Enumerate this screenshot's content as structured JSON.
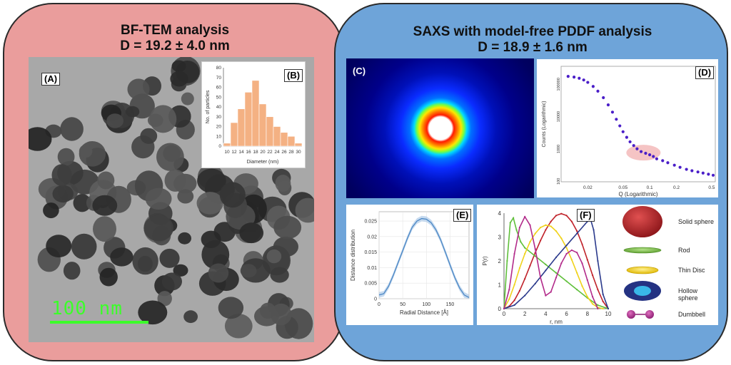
{
  "left_panel": {
    "title_line1": "BF-TEM analysis",
    "title_line2": "D = 19.2 ± 4.0 nm",
    "label_a": "(A)",
    "label_b": "(B)",
    "scale_bar_text": "100 nm",
    "colors": {
      "panel": "#ea9d9c",
      "scale": "#3cff2a",
      "bars": "#f4b183"
    }
  },
  "right_panel": {
    "title_line1": "SAXS with model-free PDDF analysis",
    "title_line2": "D = 18.9 ± 1.6 nm",
    "label_c": "(C)",
    "label_d": "(D)",
    "label_e": "(E)",
    "label_f": "(F)",
    "colors": {
      "panel": "#6ea4d9"
    }
  },
  "chart_data": [
    {
      "id": "histogram",
      "type": "bar",
      "title": "",
      "xlabel": "Diameter (nm)",
      "ylabel": "No. of particles",
      "categories": [
        "10",
        "12",
        "14",
        "16",
        "18",
        "20",
        "22",
        "24",
        "26",
        "28",
        "30"
      ],
      "bins": [
        10,
        12,
        14,
        16,
        18,
        20,
        22,
        24,
        26,
        28,
        30
      ],
      "values": [
        3,
        24,
        38,
        55,
        67,
        43,
        30,
        20,
        14,
        10,
        3
      ],
      "ylim": [
        0,
        80
      ],
      "yticks": [
        "0",
        "10",
        "20",
        "30",
        "40",
        "50",
        "60",
        "70",
        "80"
      ]
    },
    {
      "id": "saxs_curve",
      "type": "scatter",
      "xlabel": "Q (Logarithmic)",
      "ylabel": "Counts (Logarithmic)",
      "xticks": [
        "0.02",
        "0.05",
        "0.1",
        "0.2",
        "0.5"
      ],
      "yticks": [
        "100",
        "1000",
        "10000",
        "100000"
      ],
      "xlim": [
        0.01,
        0.55
      ],
      "ylim": [
        70,
        200000
      ],
      "x": [
        0.012,
        0.014,
        0.016,
        0.018,
        0.02,
        0.023,
        0.026,
        0.03,
        0.034,
        0.038,
        0.042,
        0.046,
        0.05,
        0.055,
        0.06,
        0.066,
        0.072,
        0.08,
        0.09,
        0.1,
        0.11,
        0.12,
        0.14,
        0.16,
        0.19,
        0.22,
        0.26,
        0.3,
        0.35,
        0.4,
        0.46,
        0.52
      ],
      "y": [
        100000,
        95000,
        88000,
        78000,
        66000,
        50000,
        36000,
        23000,
        14000,
        8500,
        5200,
        3300,
        2200,
        1500,
        1100,
        850,
        680,
        560,
        500,
        450,
        400,
        340,
        300,
        260,
        220,
        190,
        165,
        150,
        138,
        128,
        118,
        110
      ]
    },
    {
      "id": "distance_distribution",
      "type": "line",
      "xlabel": "Radial Distance [Å]",
      "ylabel": "Distance distribution",
      "xticks": [
        "0",
        "50",
        "100",
        "150"
      ],
      "yticks": [
        "0",
        "0.005",
        "0.01",
        "0.015",
        "0.02",
        "0.025"
      ],
      "xlim": [
        0,
        190
      ],
      "ylim": [
        0,
        0.028
      ],
      "x": [
        0,
        5,
        10,
        20,
        30,
        40,
        50,
        60,
        70,
        80,
        90,
        100,
        110,
        120,
        130,
        140,
        150,
        160,
        170,
        180,
        190
      ],
      "y": [
        0.0012,
        0.0014,
        0.0016,
        0.004,
        0.0075,
        0.0115,
        0.0155,
        0.0195,
        0.023,
        0.025,
        0.0258,
        0.0256,
        0.0245,
        0.0222,
        0.019,
        0.015,
        0.0108,
        0.0068,
        0.0035,
        0.0012,
        0.0004
      ]
    },
    {
      "id": "pr_models",
      "type": "line",
      "xlabel": "r, nm",
      "ylabel": "P(r)",
      "xticks": [
        "0",
        "2",
        "4",
        "6",
        "8",
        "10"
      ],
      "yticks": [
        "0",
        "1",
        "2",
        "3",
        "4"
      ],
      "xlim": [
        0,
        10
      ],
      "ylim": [
        0,
        4
      ],
      "series": [
        {
          "name": "Solid sphere",
          "color": "#c0222a",
          "x": [
            0,
            0.5,
            1,
            1.5,
            2,
            2.5,
            3,
            3.5,
            4,
            4.5,
            5,
            5.5,
            6,
            6.5,
            7,
            7.5,
            8,
            8.5,
            9,
            9.5,
            10
          ],
          "y": [
            0,
            0.1,
            0.35,
            0.75,
            1.25,
            1.8,
            2.35,
            2.85,
            3.3,
            3.65,
            3.9,
            3.98,
            3.9,
            3.65,
            3.25,
            2.7,
            2.05,
            1.4,
            0.8,
            0.3,
            0
          ]
        },
        {
          "name": "Rod",
          "color": "#5fbf3a",
          "x": [
            0,
            0.3,
            0.6,
            0.9,
            1.2,
            1.6,
            2,
            3,
            4,
            5,
            6,
            7,
            8,
            9,
            10
          ],
          "y": [
            0,
            2,
            3.6,
            3.8,
            3.3,
            2.8,
            2.55,
            2.2,
            1.85,
            1.5,
            1.15,
            0.8,
            0.45,
            0.15,
            0
          ]
        },
        {
          "name": "Thin Disc",
          "color": "#f0d21a",
          "x": [
            0,
            0.5,
            1,
            1.5,
            2,
            2.5,
            3,
            3.5,
            4,
            4.5,
            5,
            5.5,
            6,
            6.5,
            7,
            7.5,
            8,
            8.5,
            9,
            9.5
          ],
          "y": [
            0,
            0.4,
            1,
            1.7,
            2.3,
            2.8,
            3.15,
            3.4,
            3.5,
            3.45,
            3.25,
            2.95,
            2.55,
            2.05,
            1.5,
            0.95,
            0.5,
            0.2,
            0.05,
            0
          ]
        },
        {
          "name": "Hollow sphere",
          "color": "#2b3a8c",
          "x": [
            0,
            1,
            2,
            3,
            4,
            5,
            6,
            7,
            8,
            8.3,
            8.6,
            9,
            9.5,
            10
          ],
          "y": [
            0,
            0.15,
            0.55,
            1.05,
            1.6,
            2.15,
            2.65,
            3.15,
            3.65,
            3.75,
            3.3,
            2,
            0.6,
            0
          ]
        },
        {
          "name": "Dumbbell",
          "color": "#b22a8a",
          "x": [
            0,
            0.5,
            1,
            1.5,
            2,
            2.5,
            3,
            3.5,
            4,
            4.5,
            5,
            5.5,
            6,
            6.5,
            7,
            7.5,
            8,
            8.5,
            9
          ],
          "y": [
            0,
            0.8,
            2.3,
            3.4,
            3.85,
            3.5,
            2.5,
            1.3,
            0.55,
            0.7,
            1.3,
            1.9,
            2.3,
            2.45,
            2.35,
            1.9,
            1.2,
            0.5,
            0
          ]
        }
      ]
    }
  ],
  "legend": {
    "solid_sphere": "Solid sphere",
    "rod": "Rod",
    "thin_disc": "Thin Disc",
    "hollow_sphere": "Hollow sphere",
    "dumbbell": "Dumbbell"
  }
}
